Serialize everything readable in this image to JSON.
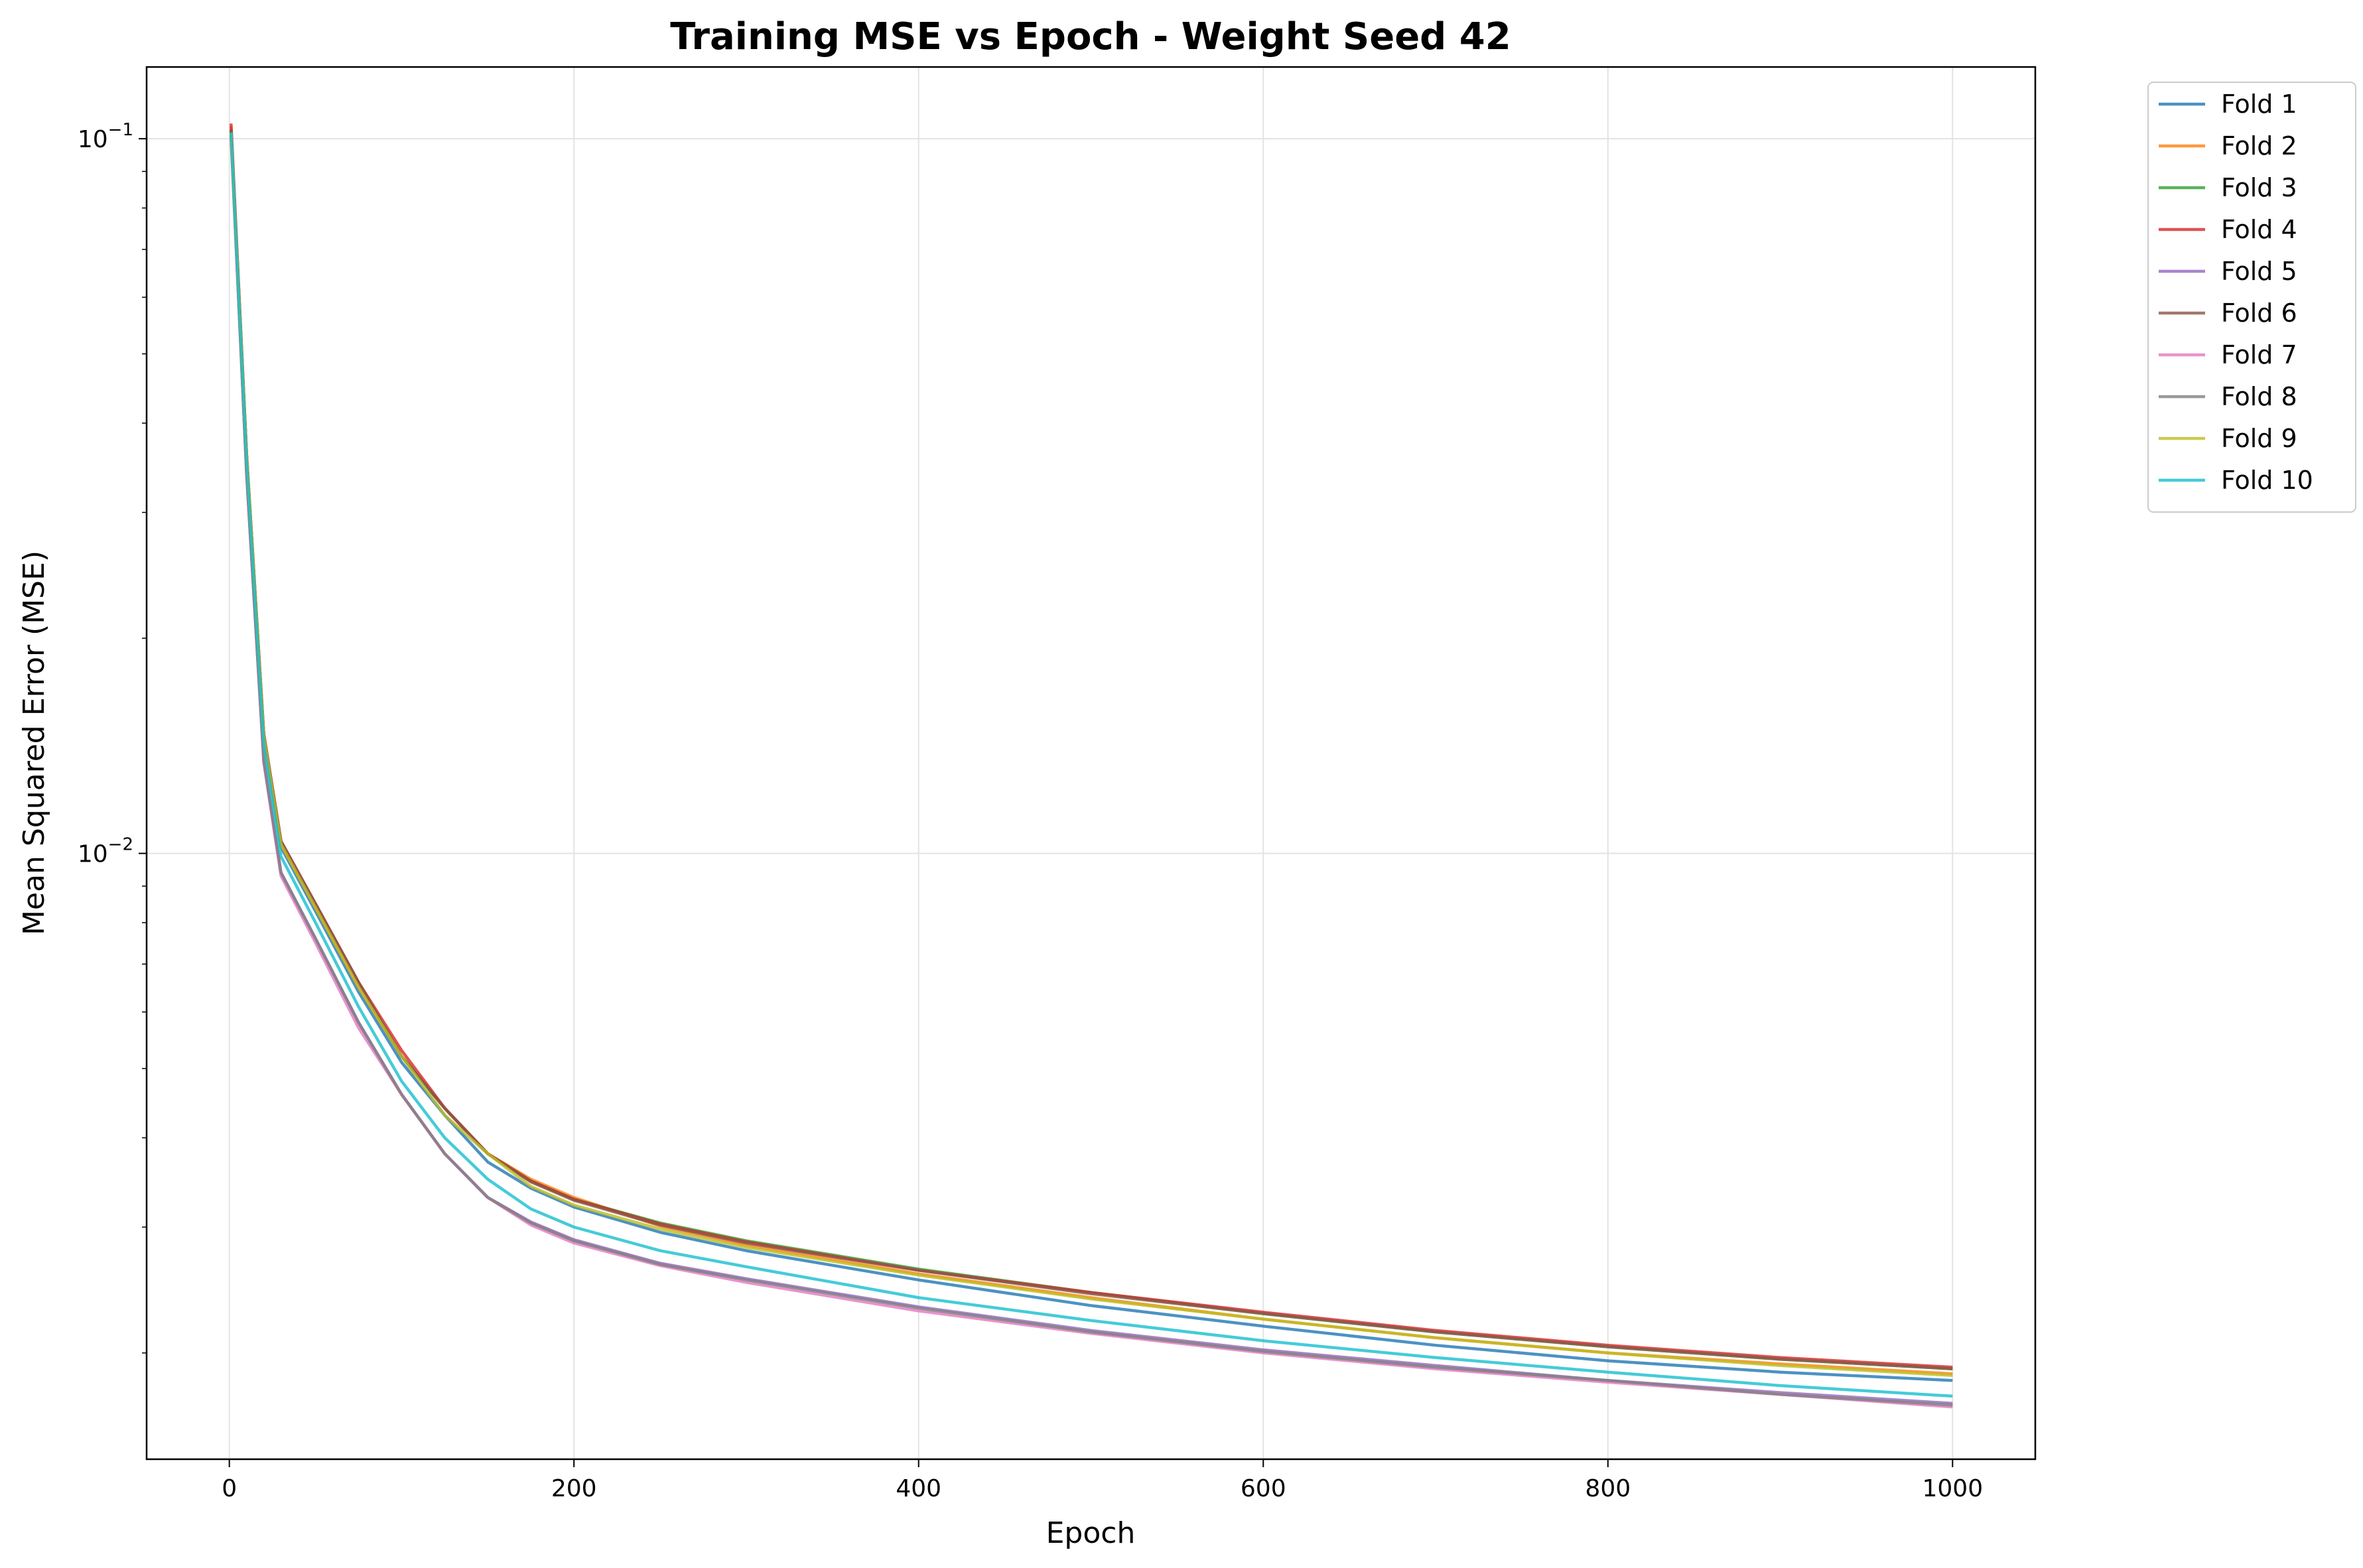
{
  "chart_data": {
    "type": "line",
    "title": "Training MSE vs Epoch - Weight Seed 42",
    "xlabel": "Epoch",
    "ylabel": "Mean Squared Error (MSE)",
    "xlim": [
      -48,
      1048
    ],
    "ylim": [
      0.00142,
      0.126
    ],
    "yscale": "log",
    "x_ticks": [
      0,
      200,
      400,
      600,
      800,
      1000
    ],
    "x_tick_labels": [
      "0",
      "200",
      "400",
      "600",
      "800",
      "1000"
    ],
    "y_ticks": [
      0.1,
      0.01
    ],
    "y_tick_labels": [
      {
        "base": "10",
        "exp": "−1"
      },
      {
        "base": "10",
        "exp": "−2"
      }
    ],
    "grid": true,
    "legend_position": "outside-top-right",
    "x": [
      1,
      10,
      20,
      30,
      50,
      75,
      100,
      125,
      150,
      175,
      200,
      250,
      300,
      400,
      500,
      600,
      700,
      800,
      900,
      1000
    ],
    "series": [
      {
        "name": "Fold 1",
        "color": "#1f77b4",
        "values": [
          0.103,
          0.036,
          0.0145,
          0.0102,
          0.0083,
          0.0064,
          0.0051,
          0.0043,
          0.0037,
          0.0034,
          0.0032,
          0.00295,
          0.00278,
          0.00253,
          0.00233,
          0.00218,
          0.00205,
          0.00195,
          0.00188,
          0.00183
        ]
      },
      {
        "name": "Fold 2",
        "color": "#ff7f0e",
        "values": [
          0.104,
          0.036,
          0.0146,
          0.0103,
          0.0084,
          0.0065,
          0.0052,
          0.0044,
          0.0038,
          0.0035,
          0.0033,
          0.00301,
          0.00283,
          0.00258,
          0.00239,
          0.00223,
          0.0021,
          0.002,
          0.00193,
          0.00187
        ]
      },
      {
        "name": "Fold 3",
        "color": "#2ca02c",
        "values": [
          0.103,
          0.0362,
          0.0147,
          0.0104,
          0.0085,
          0.0066,
          0.0052,
          0.0044,
          0.0038,
          0.00348,
          0.00328,
          0.00304,
          0.00287,
          0.00262,
          0.00243,
          0.00227,
          0.00214,
          0.00204,
          0.00196,
          0.0019
        ]
      },
      {
        "name": "Fold 4",
        "color": "#d62728",
        "values": [
          0.105,
          0.0363,
          0.0147,
          0.0104,
          0.0085,
          0.0066,
          0.0053,
          0.0044,
          0.0038,
          0.00348,
          0.00328,
          0.00303,
          0.00286,
          0.00261,
          0.00243,
          0.00228,
          0.00215,
          0.00205,
          0.00197,
          0.00191
        ]
      },
      {
        "name": "Fold 5",
        "color": "#9467bd",
        "values": [
          0.101,
          0.034,
          0.0135,
          0.0094,
          0.0076,
          0.0058,
          0.0046,
          0.0038,
          0.0033,
          0.00305,
          0.00288,
          0.00267,
          0.00254,
          0.00232,
          0.00215,
          0.00202,
          0.00192,
          0.00183,
          0.00176,
          0.0017
        ]
      },
      {
        "name": "Fold 6",
        "color": "#8c564b",
        "values": [
          0.103,
          0.0362,
          0.0147,
          0.0104,
          0.0085,
          0.0066,
          0.0052,
          0.0044,
          0.0038,
          0.00347,
          0.00327,
          0.00302,
          0.00285,
          0.00261,
          0.00242,
          0.00227,
          0.00214,
          0.00204,
          0.00196,
          0.0019
        ]
      },
      {
        "name": "Fold 7",
        "color": "#e377c2",
        "values": [
          0.1,
          0.034,
          0.0134,
          0.0093,
          0.0075,
          0.0057,
          0.0046,
          0.0038,
          0.0033,
          0.00302,
          0.00285,
          0.00265,
          0.00251,
          0.00229,
          0.00213,
          0.002,
          0.0019,
          0.00182,
          0.00175,
          0.00168
        ]
      },
      {
        "name": "Fold 8",
        "color": "#7f7f7f",
        "values": [
          0.101,
          0.0341,
          0.0135,
          0.0094,
          0.0076,
          0.0058,
          0.0046,
          0.0038,
          0.0033,
          0.00304,
          0.00287,
          0.00266,
          0.00253,
          0.00231,
          0.00214,
          0.00201,
          0.00191,
          0.00183,
          0.00175,
          0.00169
        ]
      },
      {
        "name": "Fold 9",
        "color": "#bcbd22",
        "values": [
          0.102,
          0.0361,
          0.0146,
          0.0103,
          0.0084,
          0.0065,
          0.0052,
          0.0043,
          0.0038,
          0.00342,
          0.00322,
          0.00298,
          0.00281,
          0.00257,
          0.00238,
          0.00223,
          0.0021,
          0.002,
          0.00192,
          0.00186
        ]
      },
      {
        "name": "Fold 10",
        "color": "#17becf",
        "values": [
          0.102,
          0.0355,
          0.0142,
          0.0099,
          0.008,
          0.0061,
          0.0048,
          0.004,
          0.0035,
          0.00318,
          0.003,
          0.00278,
          0.00264,
          0.00239,
          0.00222,
          0.00208,
          0.00197,
          0.00188,
          0.0018,
          0.00174
        ]
      }
    ]
  }
}
